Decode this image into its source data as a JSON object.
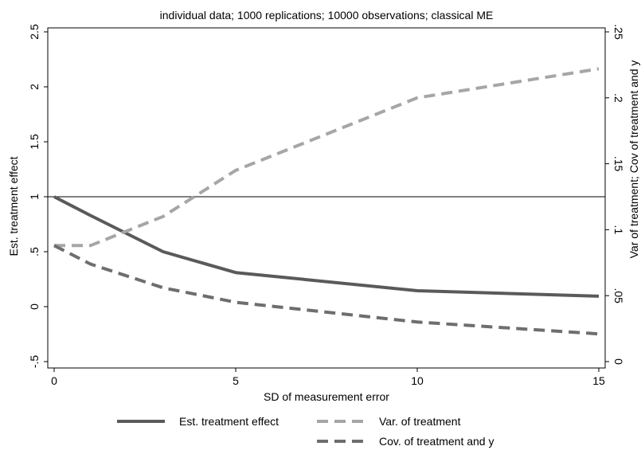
{
  "chart_data": {
    "type": "line",
    "title": "individual data; 1000 replications; 10000 observations; classical ME",
    "xlabel": "SD of measurement error",
    "ylabel_left": "Est. treatment effect",
    "ylabel_right": "Var of treatment; Cov of treatment and y",
    "xlim": [
      0,
      15
    ],
    "ylim_left": [
      -0.5,
      2.5
    ],
    "ylim_right": [
      0,
      0.25
    ],
    "x_ticks": [
      {
        "value": 0,
        "label": "0"
      },
      {
        "value": 5,
        "label": "5"
      },
      {
        "value": 10,
        "label": "10"
      },
      {
        "value": 15,
        "label": "15"
      }
    ],
    "y_left_ticks": [
      {
        "value": -0.5,
        "label": "-.5"
      },
      {
        "value": 0,
        "label": "0"
      },
      {
        "value": 0.5,
        "label": ".5"
      },
      {
        "value": 1,
        "label": "1"
      },
      {
        "value": 1.5,
        "label": "1.5"
      },
      {
        "value": 2,
        "label": "2"
      },
      {
        "value": 2.5,
        "label": "2.5"
      }
    ],
    "y_right_ticks": [
      {
        "value": 0,
        "label": "0"
      },
      {
        "value": 0.05,
        "label": ".05"
      },
      {
        "value": 0.1,
        "label": ".1"
      },
      {
        "value": 0.15,
        "label": ".15"
      },
      {
        "value": 0.2,
        "label": ".2"
      },
      {
        "value": 0.25,
        "label": ".25"
      }
    ],
    "reference_line": {
      "axis": "left",
      "value": 1
    },
    "grid": false,
    "legend_position": "bottom",
    "series": [
      {
        "name": "Est. treatment effect",
        "axis": "left",
        "style": "solid",
        "color": "#5a5a5a",
        "x": [
          0,
          1,
          3,
          5,
          10,
          15
        ],
        "y": [
          1.0,
          0.83,
          0.5,
          0.31,
          0.145,
          0.095
        ]
      },
      {
        "name": "Var. of treatment",
        "axis": "right",
        "style": "dashed",
        "color": "#a6a6a6",
        "x": [
          0,
          1,
          3,
          5,
          10,
          15
        ],
        "y": [
          0.088,
          0.088,
          0.11,
          0.145,
          0.2,
          0.222
        ]
      },
      {
        "name": "Cov. of treatment and y",
        "axis": "right",
        "style": "dashed",
        "color": "#6e6e6e",
        "x": [
          0,
          1,
          3,
          5,
          10,
          15
        ],
        "y": [
          0.088,
          0.074,
          0.056,
          0.045,
          0.03,
          0.021
        ]
      }
    ]
  }
}
